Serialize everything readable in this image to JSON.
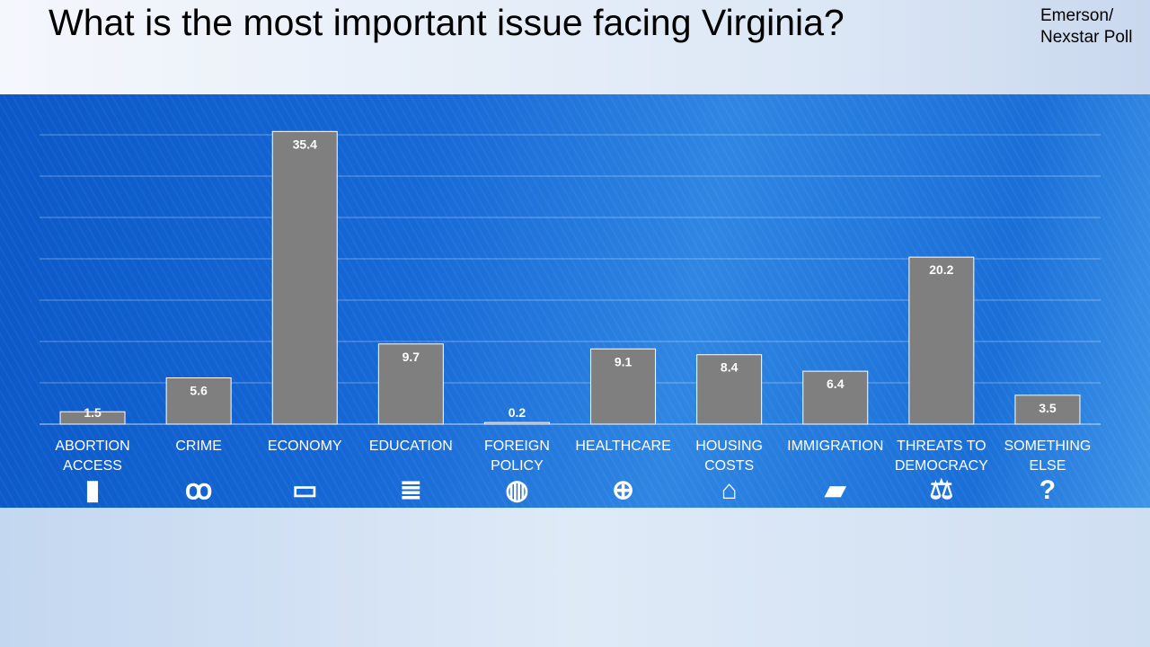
{
  "title": "What is the most important issue facing Virginia?",
  "source": [
    "Emerson/",
    "Nexstar Poll"
  ],
  "chart_data": {
    "type": "bar",
    "title": "What is the most important issue facing Virginia?",
    "categories": [
      "ABORTION ACCESS",
      "CRIME",
      "ECONOMY",
      "EDUCATION",
      "FOREIGN POLICY",
      "HEALTHCARE",
      "HOUSING COSTS",
      "IMMIGRATION",
      "THREATS TO DEMOCRACY",
      "SOMETHING ELSE"
    ],
    "label_lines": [
      [
        "ABORTION",
        "ACCESS"
      ],
      [
        "CRIME"
      ],
      [
        "ECONOMY"
      ],
      [
        "EDUCATION"
      ],
      [
        "FOREIGN",
        "POLICY"
      ],
      [
        "HEALTHCARE"
      ],
      [
        "HOUSING",
        "COSTS"
      ],
      [
        "IMMIGRATION"
      ],
      [
        "THREATS TO",
        "DEMOCRACY"
      ],
      [
        "SOMETHING",
        "ELSE"
      ]
    ],
    "icons": [
      "pill-bottle-icon",
      "handcuffs-icon",
      "money-icon",
      "books-icon",
      "globe-icon",
      "medical-cross-icon",
      "house-icon",
      "briefcase-icon",
      "scales-icon",
      "question-mark-icon"
    ],
    "values": [
      1.5,
      5.6,
      35.4,
      9.7,
      0.2,
      9.1,
      8.4,
      6.4,
      20.2,
      3.5
    ],
    "value_labels": [
      "1.5",
      "5.6",
      "35.4",
      "9.7",
      "0.2",
      "9.1",
      "8.4",
      "6.4",
      "20.2",
      "3.5"
    ],
    "ylim": [
      0,
      35
    ],
    "grid": true,
    "bar_color": "#7f7f7f",
    "xlabel": "",
    "ylabel": ""
  }
}
